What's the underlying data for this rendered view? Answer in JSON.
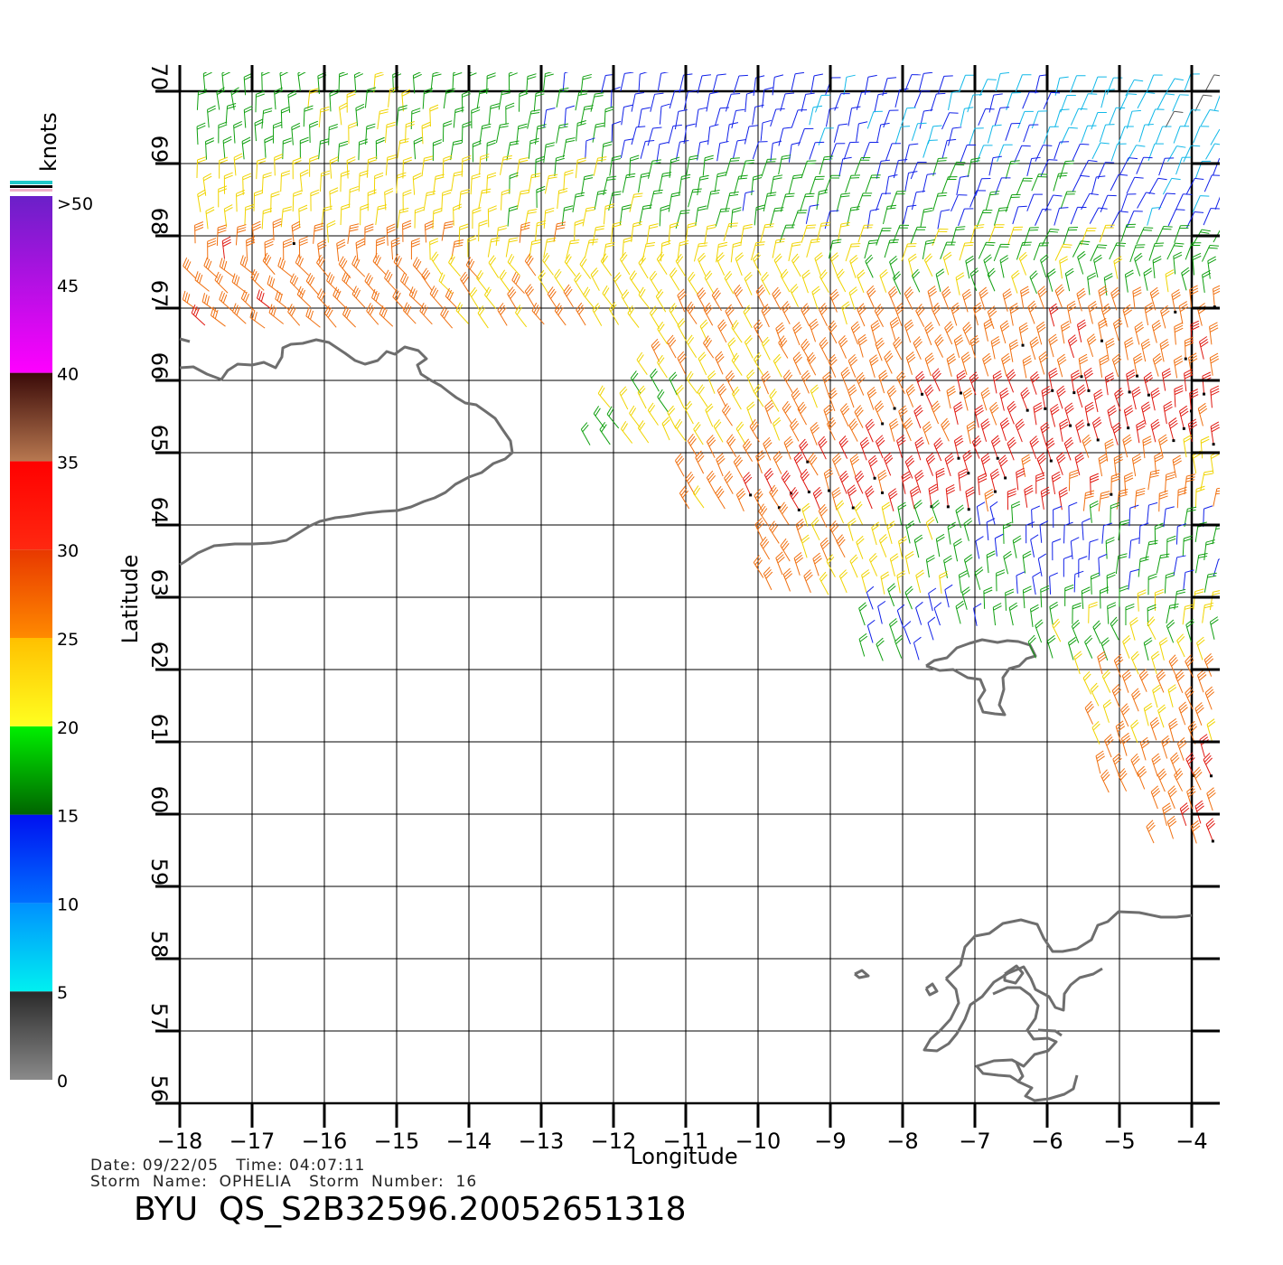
{
  "chart_data": {
    "type": "wind-barb-map",
    "xlabel": "Longitude",
    "ylabel": "Latitude",
    "xlim": [
      -18,
      -4
    ],
    "ylim": [
      56,
      70
    ],
    "x_ticks": [
      -18,
      -17,
      -16,
      -15,
      -14,
      -13,
      -12,
      -11,
      -10,
      -9,
      -8,
      -7,
      -6,
      -5,
      -4
    ],
    "x_tick_labels": [
      "−18",
      "−17",
      "−16",
      "−15",
      "−14",
      "−13",
      "−12",
      "−11",
      "−10",
      "−9",
      "−8",
      "−7",
      "−6",
      "−5",
      "−4"
    ],
    "y_ticks": [
      56,
      57,
      58,
      59,
      60,
      61,
      62,
      63,
      64,
      65,
      66,
      67,
      68,
      69,
      70
    ],
    "y_tick_labels": [
      "56",
      "57",
      "58",
      "59",
      "60",
      "61",
      "62",
      "63",
      "64",
      "65",
      "66",
      "67",
      "68",
      "69",
      "70"
    ],
    "grid": true,
    "wind_units": "knots",
    "wind_field": {
      "description": "estimated wind speed (knots) by latitude band and longitude region, swath from lon -18 to -4",
      "bands": [
        {
          "lat": [
            69,
            70.2
          ],
          "lon_speed": [
            [
              -18,
              17
            ],
            [
              -15,
              20
            ],
            [
              -12,
              14
            ],
            [
              -9,
              11
            ],
            [
              -6,
              9
            ],
            [
              -4,
              6
            ]
          ]
        },
        {
          "lat": [
            68,
            69
          ],
          "lon_speed": [
            [
              -18,
              22
            ],
            [
              -15,
              22
            ],
            [
              -12,
              19
            ],
            [
              -9,
              15
            ],
            [
              -6,
              14
            ],
            [
              -4,
              11
            ]
          ]
        },
        {
          "lat": [
            67,
            68
          ],
          "lon_speed": [
            [
              -18,
              29
            ],
            [
              -15,
              26
            ],
            [
              -12,
              23
            ],
            [
              -9,
              21
            ],
            [
              -6,
              19
            ],
            [
              -4,
              18
            ]
          ]
        },
        {
          "lat": [
            66,
            67
          ],
          "lon_speed": [
            [
              -18,
              30
            ],
            [
              -15,
              27
            ],
            [
              -12,
              25
            ],
            [
              -9,
              26
            ],
            [
              -6,
              28
            ],
            [
              -4,
              29
            ]
          ]
        },
        {
          "lat": [
            65,
            66
          ],
          "lon_speed": [
            [
              -12.6,
              18
            ],
            [
              -11,
              22
            ],
            [
              -9,
              27
            ],
            [
              -7,
              31
            ],
            [
              -5,
              33
            ],
            [
              -4,
              31
            ]
          ]
        },
        {
          "lat": [
            64,
            65
          ],
          "lon_speed": [
            [
              -11,
              25
            ],
            [
              -10,
              29
            ],
            [
              -8,
              31
            ],
            [
              -6,
              32
            ],
            [
              -4,
              24
            ]
          ]
        },
        {
          "lat": [
            63,
            64
          ],
          "lon_speed": [
            [
              -10,
              27
            ],
            [
              -8.5,
              24
            ],
            [
              -7,
              16
            ],
            [
              -6,
              13
            ],
            [
              -4,
              16
            ]
          ]
        },
        {
          "lat": [
            62,
            63
          ],
          "lon_speed": [
            [
              -8.6,
              16
            ],
            [
              -7.5,
              14
            ],
            [
              -5.5,
              19
            ],
            [
              -4,
              21
            ]
          ]
        },
        {
          "lat": [
            61,
            62
          ],
          "lon_speed": [
            [
              -5.8,
              24
            ],
            [
              -4,
              26
            ]
          ]
        },
        {
          "lat": [
            59.5,
            61
          ],
          "lon_speed": [
            [
              -5.3,
              26
            ],
            [
              -4,
              29
            ]
          ]
        }
      ]
    },
    "colorbar": {
      "label": "knots",
      "tick_labels": [
        "0",
        "5",
        "10",
        "15",
        "20",
        "25",
        "30",
        "35",
        "40",
        "45",
        ">50"
      ],
      "segments": [
        {
          "range": [
            0,
            5
          ],
          "colors": [
            "#8a8a8a",
            "#2a2a2a"
          ]
        },
        {
          "range": [
            5,
            10
          ],
          "colors": [
            "#00f0f0",
            "#0090ff"
          ]
        },
        {
          "range": [
            10,
            15
          ],
          "colors": [
            "#0070ff",
            "#0010f0"
          ]
        },
        {
          "range": [
            15,
            20
          ],
          "colors": [
            "#006400",
            "#00f000"
          ]
        },
        {
          "range": [
            20,
            25
          ],
          "colors": [
            "#ffff20",
            "#ffc000"
          ]
        },
        {
          "range": [
            25,
            30
          ],
          "colors": [
            "#ff8a00",
            "#e83800"
          ]
        },
        {
          "range": [
            30,
            35
          ],
          "colors": [
            "#ff2810",
            "#ff0000"
          ]
        },
        {
          "range": [
            35,
            40
          ],
          "colors": [
            "#b87850",
            "#3a0a08"
          ]
        },
        {
          "range": [
            40,
            50
          ],
          "colors": [
            "#ff00ff",
            "#6a20c8"
          ]
        }
      ]
    }
  },
  "info": {
    "date_time": "Date: 09/22/05   Time: 04:07:11",
    "storm": "Storm  Name:  OPHELIA   Storm  Number:  16",
    "title": "BYU  QS_S2B32596.20052651318"
  }
}
